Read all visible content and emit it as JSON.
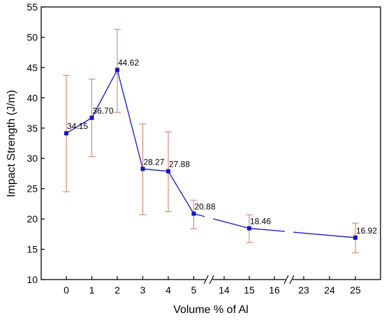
{
  "chart_data": {
    "type": "line",
    "xlabel": "Volume % of Al",
    "ylabel": "Impact Strength (J/m)",
    "ylim": [
      10,
      55
    ],
    "y_ticks": [
      10,
      15,
      20,
      25,
      30,
      35,
      40,
      45,
      50,
      55
    ],
    "x_tick_labels": [
      "0",
      "1",
      "2",
      "3",
      "4",
      "5",
      "14",
      "15",
      "16",
      "23",
      "24",
      "25"
    ],
    "x_axis_breaks": [
      "5-14",
      "16-23"
    ],
    "grid": false,
    "legend": "none",
    "colors": {
      "line": "#2020d0",
      "marker": "#1515c0",
      "error_bar": "#d9826a"
    },
    "series": [
      {
        "x": [
          0,
          1,
          2,
          3,
          4,
          5,
          15,
          25
        ],
        "values": [
          34.15,
          36.7,
          44.62,
          28.27,
          27.88,
          20.88,
          18.46,
          16.92
        ],
        "error_low": [
          24.5,
          30.3,
          37.6,
          20.7,
          21.2,
          18.4,
          16.1,
          14.4
        ],
        "error_high": [
          43.7,
          43.1,
          51.3,
          35.7,
          34.4,
          23.1,
          20.7,
          19.3
        ],
        "labels": [
          "34.15",
          "36.70",
          "44.62",
          "28.27",
          "27.88",
          "20.88",
          "18.46",
          "16.92"
        ]
      }
    ]
  }
}
